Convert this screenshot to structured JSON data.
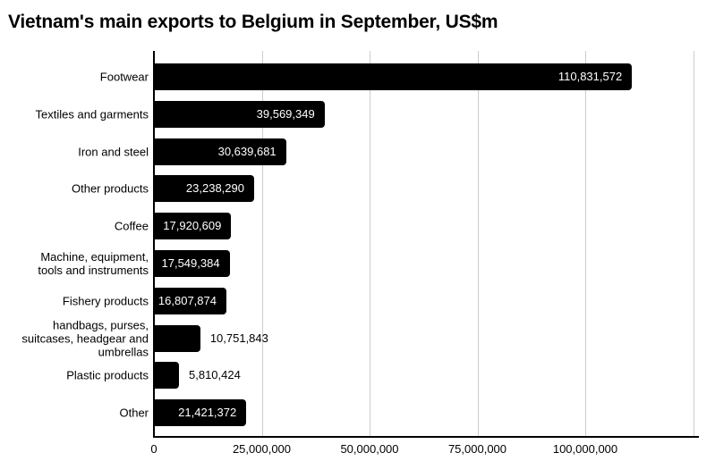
{
  "title": "Vietnam's main exports to Belgium in September, US$m",
  "chart_data": {
    "type": "bar",
    "orientation": "horizontal",
    "title": "Vietnam's main exports to Belgium in September, US$m",
    "xlabel": "",
    "ylabel": "",
    "xlim": [
      0,
      126000000
    ],
    "grid": true,
    "legend": false,
    "categories": [
      "Footwear",
      "Textiles and garments",
      "Iron and steel",
      "Other products",
      "Coffee",
      "Machine, equipment, tools and instruments",
      "Fishery products",
      "handbags, purses, suitcases, headgear and umbrellas",
      "Plastic products",
      "Other"
    ],
    "values": [
      110831572,
      39569349,
      30639681,
      23238290,
      17920609,
      17549384,
      16807874,
      10751843,
      5810424,
      21421372
    ],
    "value_labels": [
      "110,831,572",
      "39,569,349",
      "30,639,681",
      "23,238,290",
      "17,920,609",
      "17,549,384",
      "16,807,874",
      "10,751,843",
      "5,810,424",
      "21,421,372"
    ],
    "x_ticks": [
      "0",
      "25,000,000",
      "50,000,000",
      "75,000,000",
      "100,000,000"
    ],
    "x_tick_values": [
      0,
      25000000,
      50000000,
      75000000,
      100000000
    ],
    "colors": {
      "bar": "#000000",
      "grid": "#cccccc",
      "axis": "#000000",
      "value_inside": "#ffffff",
      "value_outside": "#000000",
      "text": "#000000",
      "background": "#ffffff"
    }
  }
}
